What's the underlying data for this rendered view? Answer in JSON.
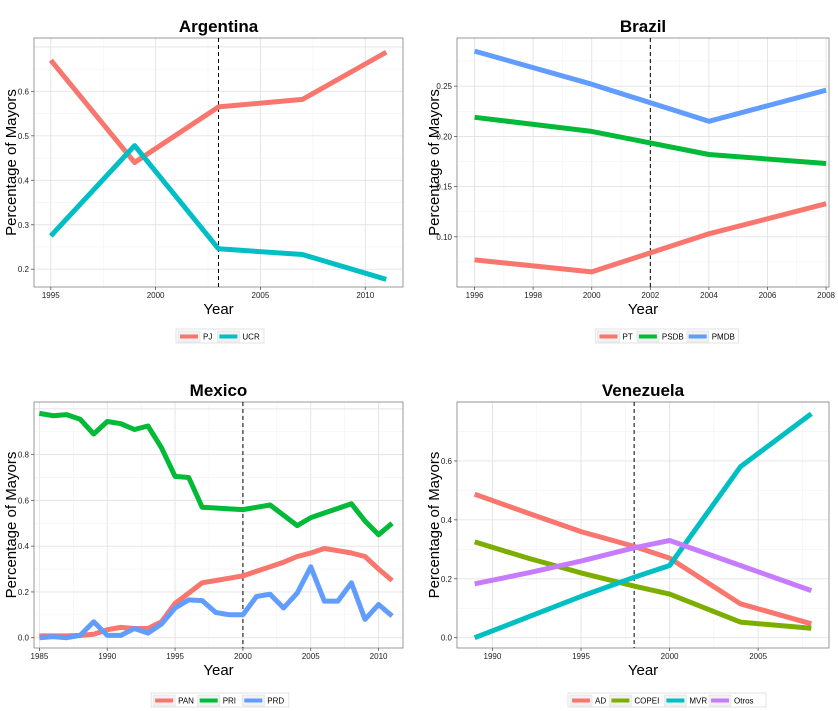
{
  "chart_data": [
    {
      "type": "line",
      "title": "Argentina",
      "xlabel": "Year",
      "ylabel": "Percentage of Mayors",
      "xlim": [
        1994.2,
        2011.8
      ],
      "ylim": [
        0.16,
        0.72
      ],
      "xticks": [
        1995,
        2000,
        2005,
        2010
      ],
      "yticks": [
        0.2,
        0.3,
        0.4,
        0.5,
        0.6
      ],
      "ytick_labels": [
        "0.2",
        "0.3",
        "0.4",
        "0.5",
        "0.6"
      ],
      "vline": 2003,
      "grid": true,
      "legend": "bottom",
      "series": [
        {
          "name": "PJ",
          "color": "#F8766D",
          "x": [
            1995,
            1999,
            2003,
            2007,
            2011
          ],
          "y": [
            0.67,
            0.44,
            0.565,
            0.582,
            0.688
          ]
        },
        {
          "name": "UCR",
          "color": "#00BFC4",
          "x": [
            1995,
            1999,
            2003,
            2007,
            2011
          ],
          "y": [
            0.275,
            0.478,
            0.246,
            0.233,
            0.177
          ]
        }
      ]
    },
    {
      "type": "line",
      "title": "Brazil",
      "xlabel": "Year",
      "ylabel": "Percentage of Mayors",
      "xlim": [
        1995.4,
        2008.1
      ],
      "ylim": [
        0.05,
        0.298
      ],
      "xticks": [
        1996,
        1998,
        2000,
        2002,
        2004,
        2006,
        2008
      ],
      "yticks": [
        0.1,
        0.15,
        0.2,
        0.25
      ],
      "ytick_labels": [
        "0.10",
        "0.15",
        "0.20",
        "0.25"
      ],
      "vline": 2002,
      "grid": true,
      "legend": "bottom",
      "series": [
        {
          "name": "PT",
          "color": "#F8766D",
          "x": [
            1996,
            2000,
            2004,
            2008
          ],
          "y": [
            0.077,
            0.065,
            0.103,
            0.133
          ]
        },
        {
          "name": "PSDB",
          "color": "#00BA38",
          "x": [
            1996,
            2000,
            2004,
            2008
          ],
          "y": [
            0.219,
            0.205,
            0.182,
            0.173
          ]
        },
        {
          "name": "PMDB",
          "color": "#619CFF",
          "x": [
            1996,
            2000,
            2004,
            2008
          ],
          "y": [
            0.285,
            0.252,
            0.215,
            0.246
          ]
        }
      ]
    },
    {
      "type": "line",
      "title": "Mexico",
      "xlabel": "Year",
      "ylabel": "Percentage of Mayors",
      "xlim": [
        1984.6,
        2011.8
      ],
      "ylim": [
        -0.045,
        1.03
      ],
      "xticks": [
        1985,
        1990,
        1995,
        2000,
        2005,
        2010
      ],
      "yticks": [
        0.0,
        0.2,
        0.4,
        0.6,
        0.8
      ],
      "ytick_labels": [
        "0.0",
        "0.2",
        "0.4",
        "0.6",
        "0.8"
      ],
      "vline": 2000,
      "grid": true,
      "legend": "bottom",
      "series": [
        {
          "name": "PAN",
          "color": "#F8766D",
          "x": [
            1985,
            1986,
            1987,
            1988,
            1989,
            1990,
            1991,
            1992,
            1993,
            1994,
            1995,
            1996,
            1997,
            1998,
            1999,
            2000,
            2001,
            2002,
            2003,
            2004,
            2005,
            2006,
            2007,
            2008,
            2009,
            2010,
            2011
          ],
          "y": [
            0.008,
            0.008,
            0.008,
            0.01,
            0.015,
            0.035,
            0.045,
            0.04,
            0.04,
            0.07,
            0.15,
            0.195,
            0.24,
            0.25,
            0.26,
            0.27,
            0.29,
            0.31,
            0.33,
            0.355,
            0.37,
            0.39,
            0.38,
            0.37,
            0.355,
            0.3,
            0.25
          ]
        },
        {
          "name": "PRI",
          "color": "#00BA38",
          "x": [
            1985,
            1986,
            1987,
            1988,
            1989,
            1990,
            1991,
            1992,
            1993,
            1994,
            1995,
            1996,
            1997,
            1998,
            1999,
            2000,
            2001,
            2002,
            2003,
            2004,
            2005,
            2006,
            2007,
            2008,
            2009,
            2010,
            2011
          ],
          "y": [
            0.98,
            0.97,
            0.975,
            0.955,
            0.89,
            0.945,
            0.935,
            0.91,
            0.925,
            0.83,
            0.705,
            0.7,
            0.57,
            0.567,
            0.563,
            0.56,
            0.57,
            0.58,
            0.535,
            0.49,
            0.525,
            0.545,
            0.565,
            0.585,
            0.51,
            0.45,
            0.5
          ]
        },
        {
          "name": "PRD",
          "color": "#619CFF",
          "x": [
            1985,
            1986,
            1987,
            1988,
            1989,
            1990,
            1991,
            1992,
            1993,
            1994,
            1995,
            1996,
            1997,
            1998,
            1999,
            2000,
            2001,
            2002,
            2003,
            2004,
            2005,
            2006,
            2007,
            2008,
            2009,
            2010,
            2011
          ],
          "y": [
            0.0,
            0.005,
            0.0,
            0.01,
            0.07,
            0.01,
            0.01,
            0.04,
            0.02,
            0.06,
            0.13,
            0.165,
            0.162,
            0.11,
            0.1,
            0.1,
            0.18,
            0.19,
            0.13,
            0.195,
            0.31,
            0.16,
            0.16,
            0.24,
            0.08,
            0.145,
            0.095
          ]
        }
      ]
    },
    {
      "type": "line",
      "title": "Venezuela",
      "xlabel": "Year",
      "ylabel": "Percentage of Mayors",
      "xlim": [
        1988.0,
        2009.0
      ],
      "ylim": [
        -0.035,
        0.8
      ],
      "xticks": [
        1990,
        1995,
        2000,
        2005
      ],
      "yticks": [
        0.0,
        0.2,
        0.4,
        0.6
      ],
      "ytick_labels": [
        "0.0",
        "0.2",
        "0.4",
        "0.6"
      ],
      "vline": 1998,
      "grid": true,
      "legend": "bottom",
      "series": [
        {
          "name": "AD",
          "color": "#F8766D",
          "x": [
            1989,
            1992,
            1995,
            1998,
            2000,
            2004,
            2008
          ],
          "y": [
            0.487,
            0.423,
            0.36,
            0.31,
            0.27,
            0.115,
            0.047
          ]
        },
        {
          "name": "COPEI",
          "color": "#7CAE00",
          "x": [
            1989,
            1992,
            1995,
            1998,
            2000,
            2004,
            2008
          ],
          "y": [
            0.325,
            0.27,
            0.22,
            0.175,
            0.148,
            0.053,
            0.032
          ]
        },
        {
          "name": "MVR",
          "color": "#00BFC4",
          "x": [
            1989,
            1992,
            1995,
            1998,
            2000,
            2004,
            2008
          ],
          "y": [
            0.0,
            0.07,
            0.14,
            0.205,
            0.245,
            0.58,
            0.76
          ]
        },
        {
          "name": "Otros",
          "color": "#C77CFF",
          "x": [
            1989,
            1992,
            1995,
            1998,
            2000,
            2004,
            2008
          ],
          "y": [
            0.183,
            0.22,
            0.26,
            0.305,
            0.33,
            0.245,
            0.16
          ]
        }
      ]
    }
  ]
}
